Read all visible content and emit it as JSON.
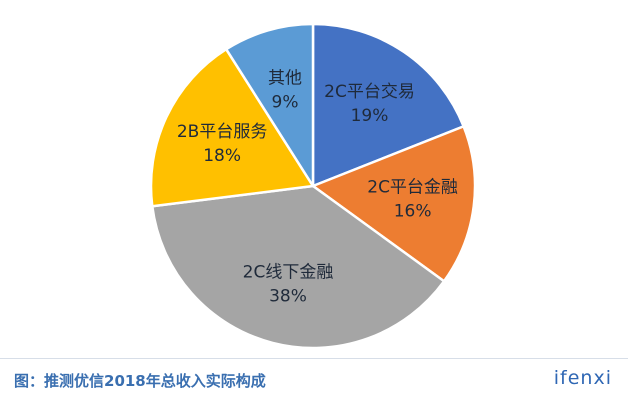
{
  "chart_data": {
    "type": "pie",
    "slices": [
      {
        "label": "2C平台交易",
        "percent_label": "19%",
        "value": 19,
        "color": "#4472c4"
      },
      {
        "label": "2C平台金融",
        "percent_label": "16%",
        "value": 16,
        "color": "#ed7d31"
      },
      {
        "label": "2C线下金融",
        "percent_label": "38%",
        "value": 38,
        "color": "#a5a5a5"
      },
      {
        "label": "2B平台服务",
        "percent_label": "18%",
        "value": 18,
        "color": "#ffc000"
      },
      {
        "label": "其他",
        "percent_label": "9%",
        "value": 9,
        "color": "#5b9bd5"
      }
    ],
    "start": "12 o'clock",
    "direction": "clockwise"
  },
  "caption": {
    "text": "图：推测优信2018年总收入实际构成"
  },
  "logo": {
    "text": "ifenxi"
  }
}
